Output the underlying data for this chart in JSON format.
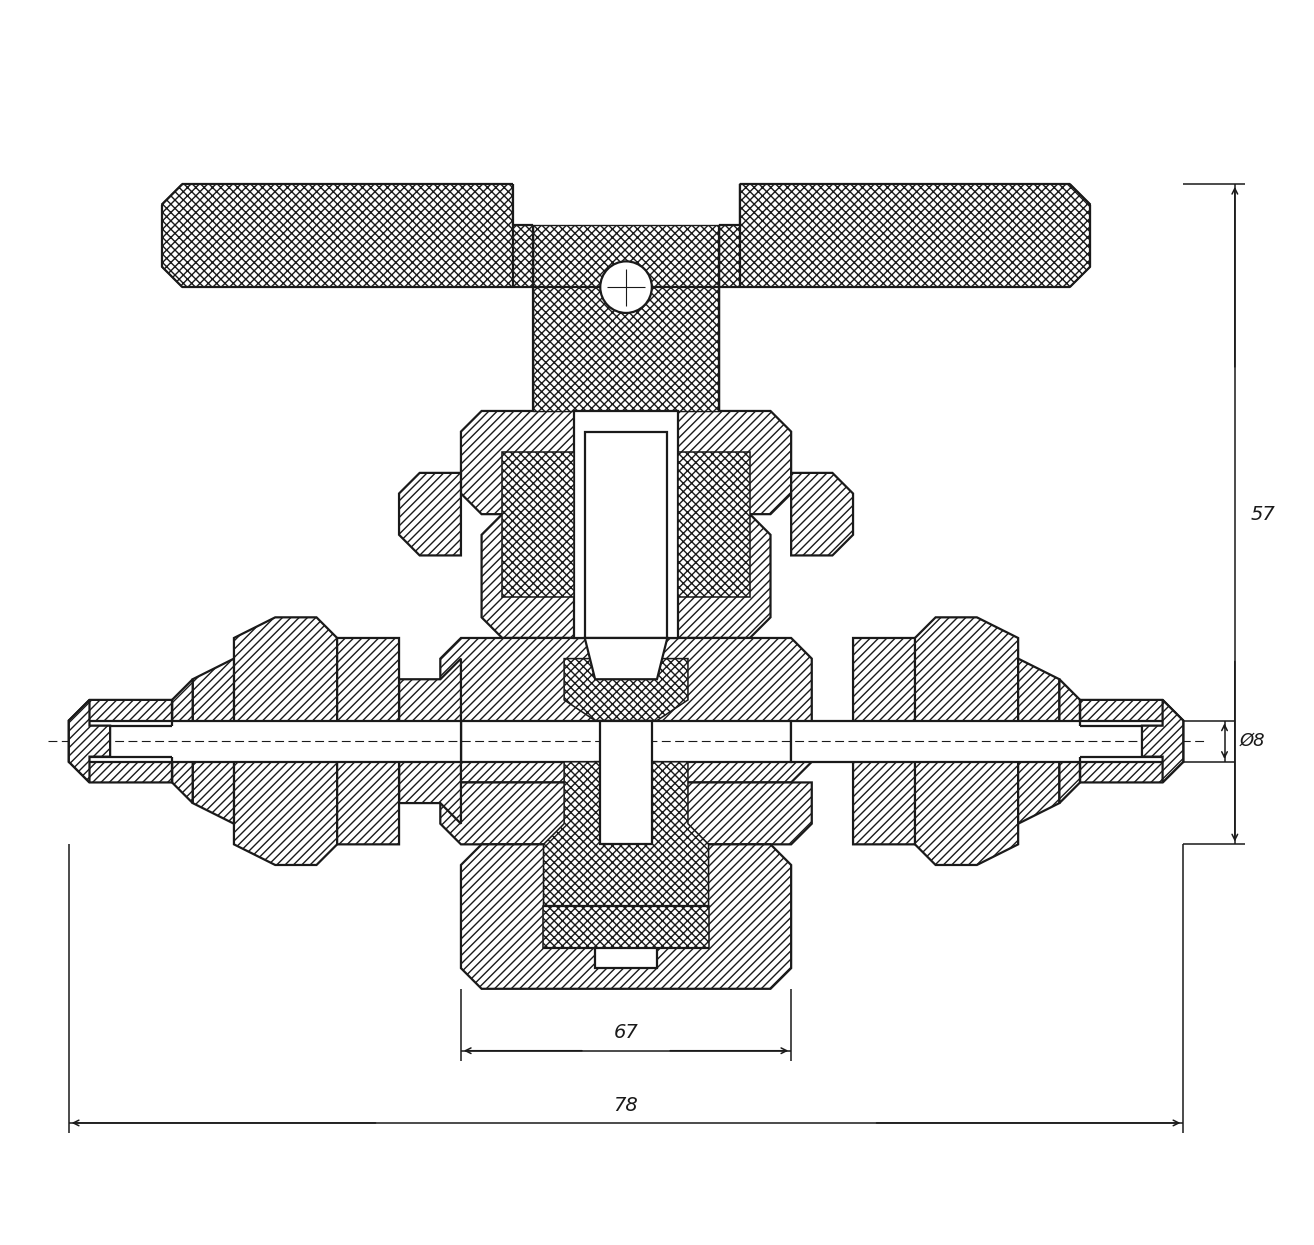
{
  "background_color": "#ffffff",
  "line_color": "#1a1a1a",
  "dim_67": "67",
  "dim_78": "78",
  "dim_57": "57",
  "dim_phi8": "Ø8",
  "figsize": [
    13.14,
    12.45
  ],
  "dpi": 100,
  "lw_main": 1.6,
  "lw_thin": 0.8,
  "lw_dim": 1.1,
  "font_size_dim": 14
}
